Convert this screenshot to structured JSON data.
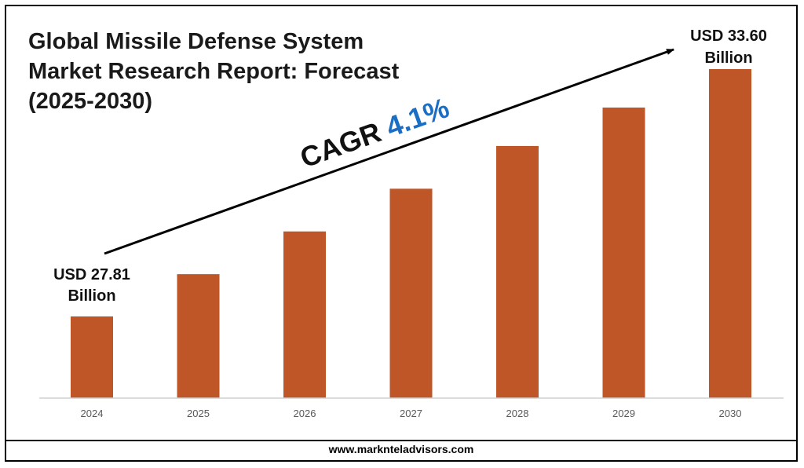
{
  "title_lines": [
    "Global Missile Defense System",
    "Market Research Report: Forecast",
    "(2025-2030)"
  ],
  "cagr": {
    "label": "CAGR",
    "value": "4.1%",
    "color": "#1a6fc4"
  },
  "start_label": [
    "USD 27.81",
    "Billion"
  ],
  "end_label": [
    "USD 33.60",
    "Billion"
  ],
  "footer": "www.marknteladvisors.com",
  "chart_data": {
    "type": "bar",
    "title": "Global Missile Defense System Market Research Report: Forecast (2025-2030)",
    "categories": [
      "2024",
      "2025",
      "2026",
      "2027",
      "2028",
      "2029",
      "2030"
    ],
    "series": [
      {
        "values": [
          27.81,
          28.8,
          29.8,
          30.8,
          31.8,
          32.7,
          33.6
        ],
        "color": "#bf5628"
      }
    ],
    "grid": false,
    "legend": "none"
  }
}
